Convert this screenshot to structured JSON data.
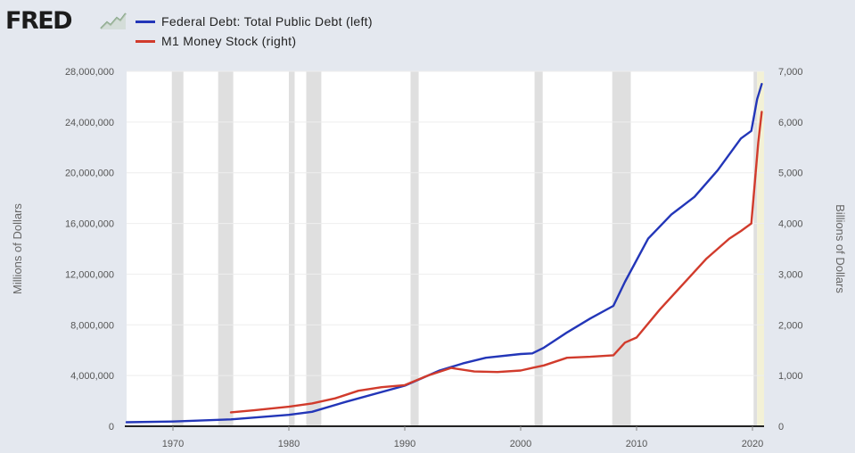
{
  "header": {
    "logo_text": "FRED",
    "logo_icon": "trend-chart-icon"
  },
  "chart_data": {
    "type": "line",
    "title": "",
    "legend_position": "top-left",
    "x_axis": {
      "ticks": [
        1970,
        1980,
        1990,
        2000,
        2010,
        2020
      ],
      "range": [
        1966,
        2021
      ]
    },
    "y_left": {
      "label": "Millions of Dollars",
      "range": [
        0,
        28000000
      ],
      "ticks": [
        "0",
        "4,000,000",
        "8,000,000",
        "12,000,000",
        "16,000,000",
        "20,000,000",
        "24,000,000",
        "28,000,000"
      ]
    },
    "y_right": {
      "label": "Billions of Dollars",
      "range": [
        0,
        7000
      ],
      "ticks": [
        "0",
        "1,000",
        "2,000",
        "3,000",
        "4,000",
        "5,000",
        "6,000",
        "7,000"
      ]
    },
    "recessions": [
      [
        1969.9,
        1970.9
      ],
      [
        1973.9,
        1975.2
      ],
      [
        1980.0,
        1980.5
      ],
      [
        1981.5,
        1982.8
      ],
      [
        1990.5,
        1991.2
      ],
      [
        2001.2,
        2001.9
      ],
      [
        2007.9,
        2009.5
      ],
      [
        2020.1,
        2020.4
      ]
    ],
    "highlight_region": [
      2020.4,
      2021.0
    ],
    "series": [
      {
        "name": "Federal Debt: Total Public Debt (left)",
        "axis": "left",
        "color": "#2336b8",
        "x": [
          1966,
          1970,
          1975,
          1980,
          1982,
          1985,
          1990,
          1993,
          1995,
          1997,
          2000,
          2001,
          2002,
          2004,
          2006,
          2008,
          2009,
          2011,
          2013,
          2015,
          2017,
          2019,
          2019.9,
          2020.4,
          2020.8
        ],
        "y": [
          320000,
          370000,
          540000,
          900000,
          1140000,
          1950000,
          3200000,
          4400000,
          4950000,
          5400000,
          5700000,
          5750000,
          6200000,
          7400000,
          8500000,
          9500000,
          11400000,
          14800000,
          16700000,
          18100000,
          20200000,
          22700000,
          23300000,
          25800000,
          27000000
        ]
      },
      {
        "name": "M1 Money Stock (right)",
        "axis": "right",
        "color": "#d13b2c",
        "x": [
          1975,
          1977,
          1980,
          1982,
          1984,
          1986,
          1988,
          1990,
          1992,
          1994,
          1996,
          1998,
          2000,
          2001,
          2002,
          2004,
          2006,
          2008,
          2009,
          2010,
          2012,
          2014,
          2016,
          2018,
          2019,
          2019.9,
          2020.2,
          2020.5,
          2020.8
        ],
        "y": [
          275,
          315,
          385,
          450,
          550,
          700,
          770,
          810,
          1000,
          1150,
          1080,
          1070,
          1100,
          1150,
          1200,
          1350,
          1370,
          1400,
          1650,
          1750,
          2300,
          2800,
          3300,
          3700,
          3850,
          4000,
          4800,
          5600,
          6200
        ]
      }
    ]
  }
}
